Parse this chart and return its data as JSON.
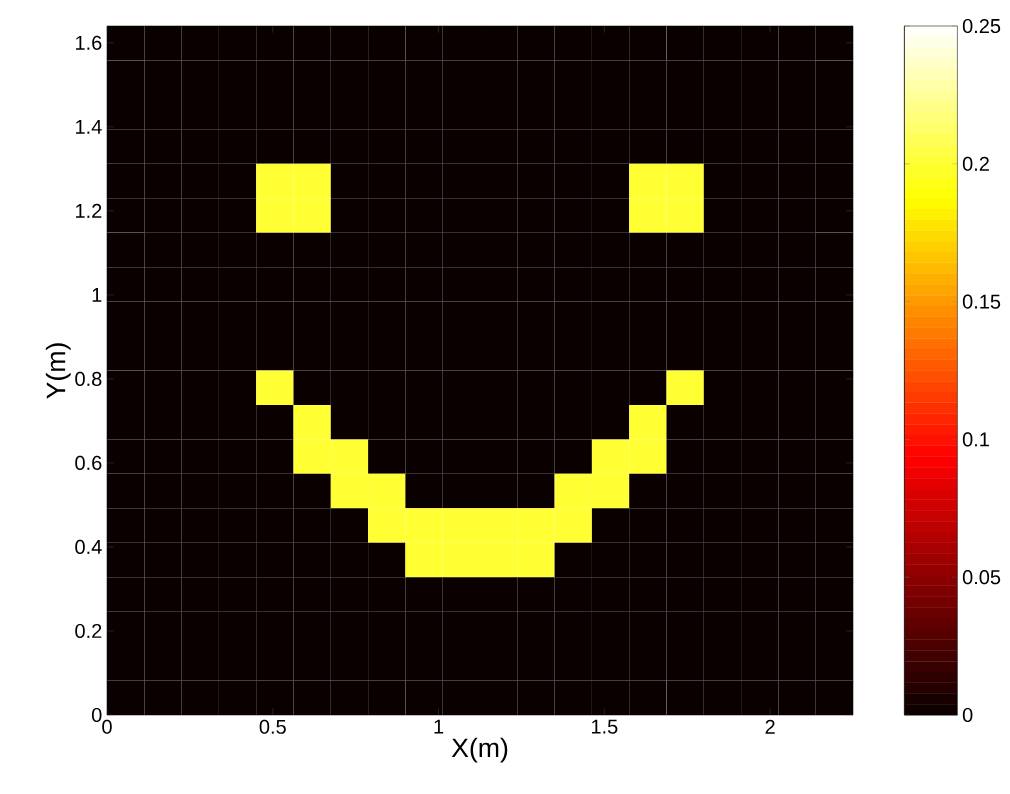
{
  "chart_data": {
    "type": "heatmap",
    "xlabel": "X(m)",
    "ylabel": "Y(m)",
    "xlim": [
      0,
      2.25
    ],
    "ylim": [
      0,
      1.64
    ],
    "xticks": [
      0,
      0.5,
      1,
      1.5,
      2
    ],
    "yticks": [
      0,
      0.2,
      0.4,
      0.6,
      0.8,
      1,
      1.2,
      1.4,
      1.6
    ],
    "clim": [
      0,
      0.25
    ],
    "cticks": [
      0,
      0.05,
      0.1,
      0.15,
      0.2,
      0.25
    ],
    "cells": [
      [
        0,
        0,
        0,
        0,
        0,
        0,
        0,
        0,
        0,
        0,
        0,
        0,
        0,
        0,
        0,
        0,
        0,
        0,
        0,
        0
      ],
      [
        0,
        0,
        0,
        0,
        0,
        0,
        0,
        0,
        0,
        0,
        0,
        0,
        0,
        0,
        0,
        0,
        0,
        0,
        0,
        0
      ],
      [
        0,
        0,
        0,
        0,
        0,
        0,
        0,
        0,
        0,
        0,
        0,
        0,
        0,
        0,
        0,
        0,
        0,
        0,
        0,
        0
      ],
      [
        0,
        0,
        0,
        0,
        0,
        0,
        0,
        0,
        0,
        0,
        0,
        0,
        0,
        0,
        0,
        0,
        0,
        0,
        0,
        0
      ],
      [
        0,
        0,
        0,
        0,
        0.2,
        0.2,
        0,
        0,
        0,
        0,
        0,
        0,
        0,
        0,
        0.2,
        0.2,
        0,
        0,
        0,
        0
      ],
      [
        0,
        0,
        0,
        0,
        0.2,
        0.2,
        0,
        0,
        0,
        0,
        0,
        0,
        0,
        0,
        0.2,
        0.2,
        0,
        0,
        0,
        0
      ],
      [
        0,
        0,
        0,
        0,
        0,
        0,
        0,
        0,
        0,
        0,
        0,
        0,
        0,
        0,
        0,
        0,
        0,
        0,
        0,
        0
      ],
      [
        0,
        0,
        0,
        0,
        0,
        0,
        0,
        0,
        0,
        0,
        0,
        0,
        0,
        0,
        0,
        0,
        0,
        0,
        0,
        0
      ],
      [
        0,
        0,
        0,
        0,
        0,
        0,
        0,
        0,
        0,
        0,
        0,
        0,
        0,
        0,
        0,
        0,
        0,
        0,
        0,
        0
      ],
      [
        0,
        0,
        0,
        0,
        0,
        0,
        0,
        0,
        0,
        0,
        0,
        0,
        0,
        0,
        0,
        0,
        0,
        0,
        0,
        0
      ],
      [
        0,
        0,
        0,
        0,
        0.2,
        0,
        0,
        0,
        0,
        0,
        0,
        0,
        0,
        0,
        0,
        0.2,
        0,
        0,
        0,
        0
      ],
      [
        0,
        0,
        0,
        0,
        0,
        0.2,
        0,
        0,
        0,
        0,
        0,
        0,
        0,
        0,
        0.2,
        0,
        0,
        0,
        0,
        0
      ],
      [
        0,
        0,
        0,
        0,
        0,
        0.2,
        0.2,
        0,
        0,
        0,
        0,
        0,
        0,
        0.2,
        0.2,
        0,
        0,
        0,
        0,
        0
      ],
      [
        0,
        0,
        0,
        0,
        0,
        0,
        0.2,
        0.2,
        0,
        0,
        0,
        0,
        0.2,
        0.2,
        0,
        0,
        0,
        0,
        0,
        0
      ],
      [
        0,
        0,
        0,
        0,
        0,
        0,
        0,
        0.2,
        0.2,
        0.2,
        0.2,
        0.2,
        0.2,
        0,
        0,
        0,
        0,
        0,
        0,
        0
      ],
      [
        0,
        0,
        0,
        0,
        0,
        0,
        0,
        0,
        0.2,
        0.2,
        0.2,
        0.2,
        0,
        0,
        0,
        0,
        0,
        0,
        0,
        0
      ],
      [
        0,
        0,
        0,
        0,
        0,
        0,
        0,
        0,
        0,
        0,
        0,
        0,
        0,
        0,
        0,
        0,
        0,
        0,
        0,
        0
      ],
      [
        0,
        0,
        0,
        0,
        0,
        0,
        0,
        0,
        0,
        0,
        0,
        0,
        0,
        0,
        0,
        0,
        0,
        0,
        0,
        0
      ],
      [
        0,
        0,
        0,
        0,
        0,
        0,
        0,
        0,
        0,
        0,
        0,
        0,
        0,
        0,
        0,
        0,
        0,
        0,
        0,
        0
      ],
      [
        0,
        0,
        0,
        0,
        0,
        0,
        0,
        0,
        0,
        0,
        0,
        0,
        0,
        0,
        0,
        0,
        0,
        0,
        0,
        0
      ]
    ]
  }
}
